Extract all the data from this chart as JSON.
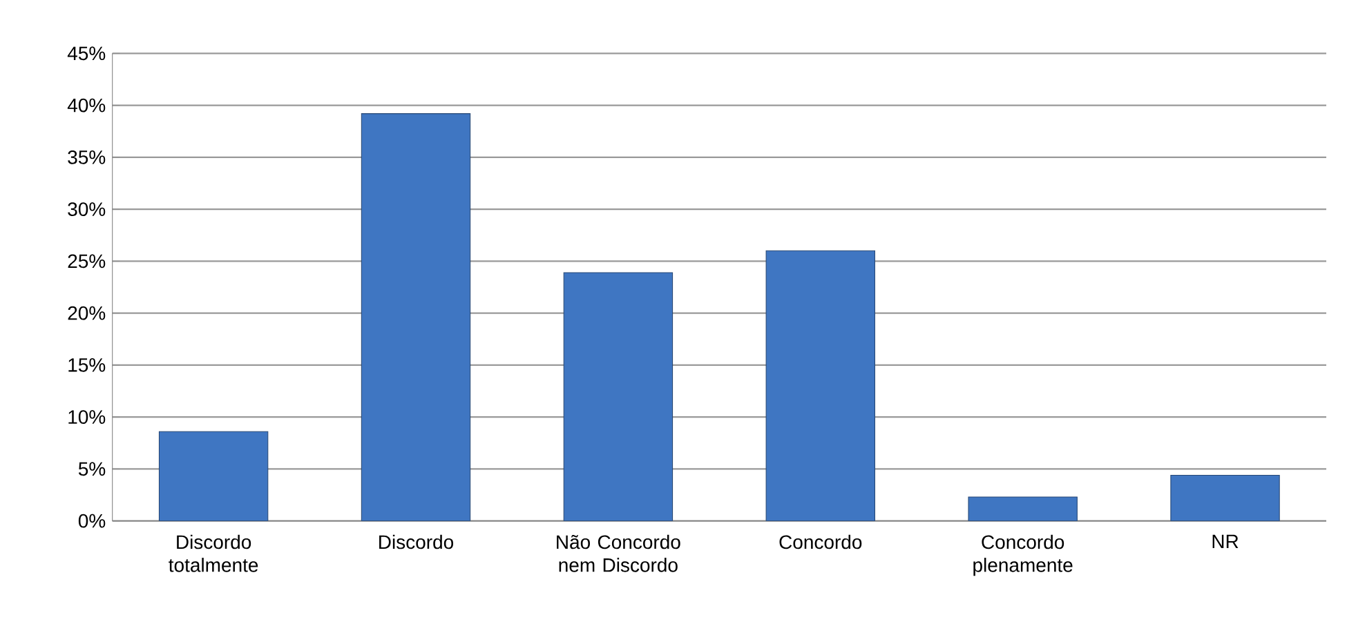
{
  "chart_data": {
    "type": "bar",
    "categories": [
      "Discordo totalmente",
      "Discordo",
      "Não Concordo nem Discordo",
      "Concordo",
      "Concordo plenamente",
      "NR"
    ],
    "values": [
      8.6,
      39.2,
      23.9,
      26.0,
      2.3,
      4.4
    ],
    "color": "#3f76c2",
    "ylim": [
      0,
      45
    ],
    "yticks": [
      {
        "value": 0,
        "label": "0%"
      },
      {
        "value": 5,
        "label": "5%"
      },
      {
        "value": 10,
        "label": "10%"
      },
      {
        "value": 15,
        "label": "15%"
      },
      {
        "value": 20,
        "label": "20%"
      },
      {
        "value": 25,
        "label": "25%"
      },
      {
        "value": 30,
        "label": "30%"
      },
      {
        "value": 35,
        "label": "35%"
      },
      {
        "value": 40,
        "label": "40%"
      },
      {
        "value": 45,
        "label": "45%"
      }
    ],
    "grid": "y"
  }
}
